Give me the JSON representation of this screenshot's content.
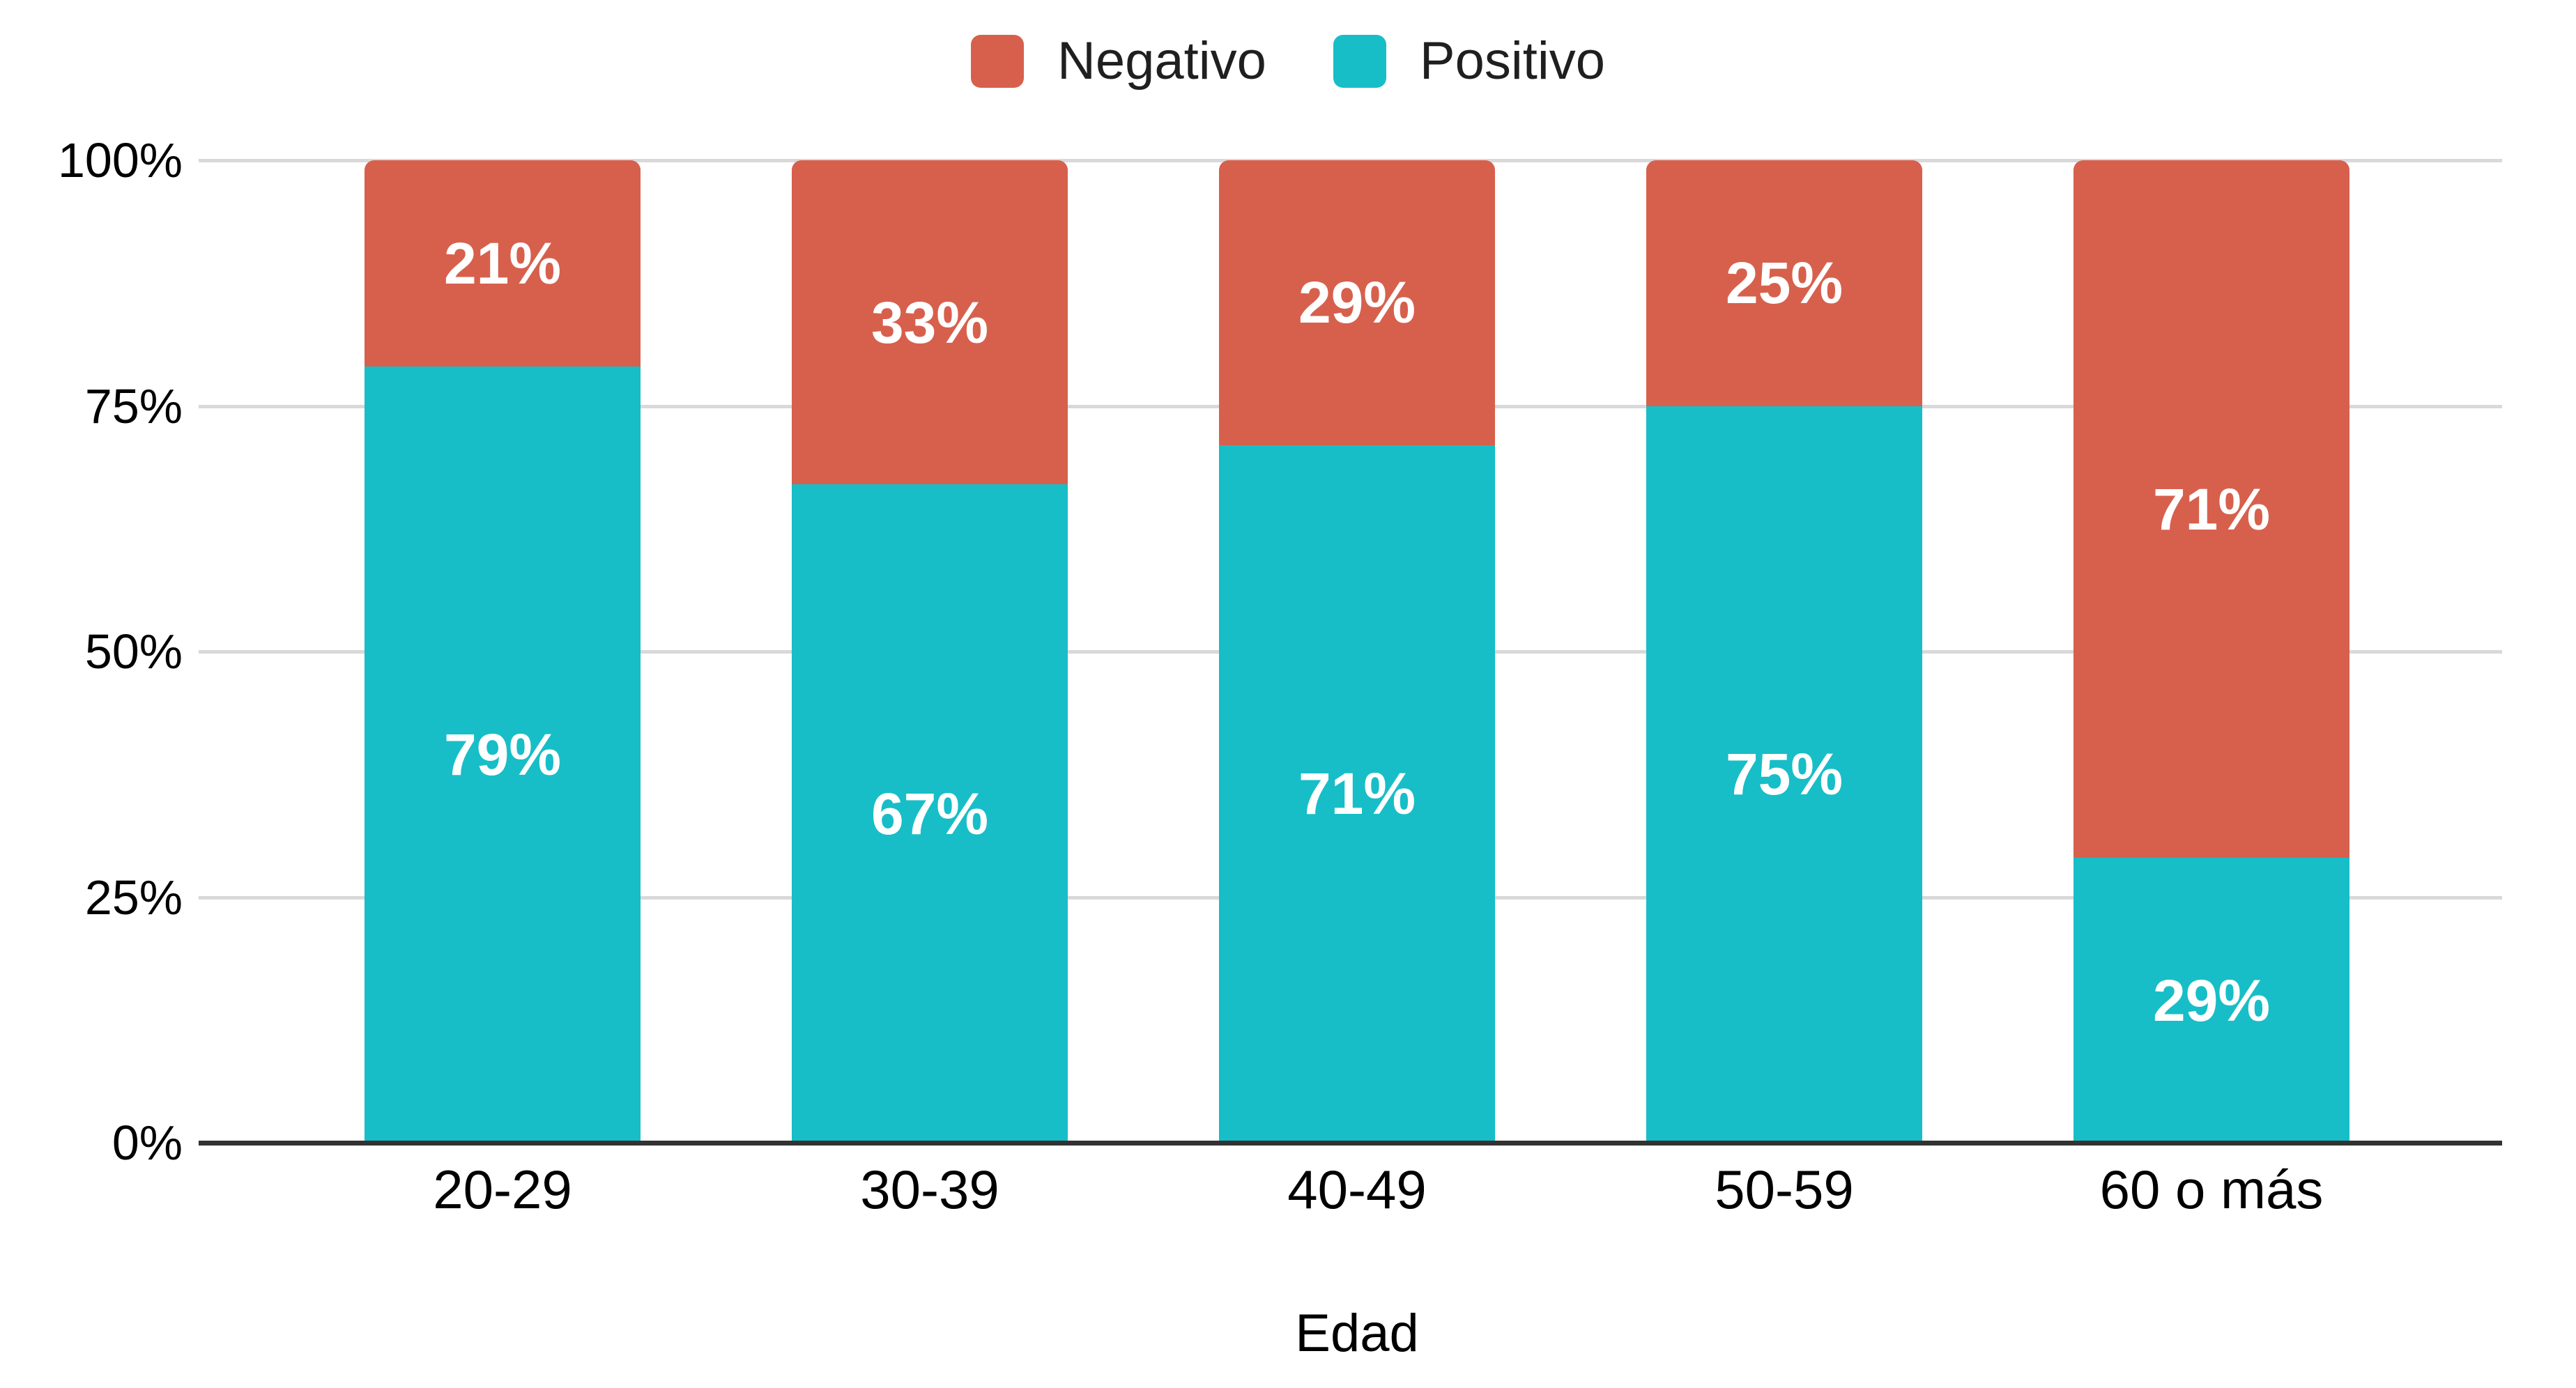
{
  "chart_data": {
    "type": "bar",
    "variant": "stacked-100-percent",
    "title": "",
    "categories": [
      "20-29",
      "30-39",
      "40-49",
      "50-59",
      "60 o más"
    ],
    "series": [
      {
        "name": "Negativo",
        "color": "#D7604D",
        "values": [
          21,
          33,
          29,
          25,
          71
        ]
      },
      {
        "name": "Positivo",
        "color": "#17BEC7",
        "values": [
          79,
          67,
          71,
          75,
          29
        ]
      }
    ],
    "data_label_suffix": "%",
    "xlabel": "Edad",
    "y_ticks": [
      "100%",
      "75%",
      "50%",
      "25%",
      "0%"
    ],
    "ylim": [
      0,
      100
    ],
    "grid": true,
    "legend_position": "top",
    "gridline_color": "#D9D9D9",
    "axis_line_color": "#323232",
    "bar_label_color": "#FFFFFF",
    "axis_text_color": "#000000",
    "background": "#FFFFFF"
  }
}
